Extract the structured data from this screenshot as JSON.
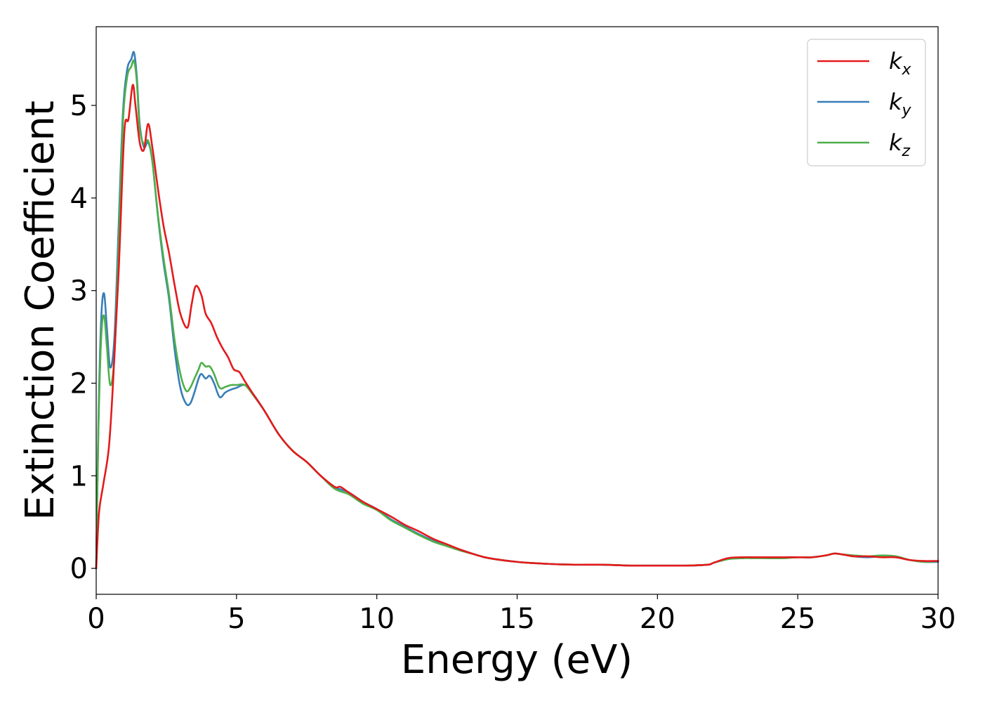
{
  "chart_data": {
    "type": "line",
    "xlabel": "Energy (eV)",
    "ylabel": "Extinction Coefficient",
    "xlim": [
      0,
      30
    ],
    "ylim": [
      -0.28,
      5.85
    ],
    "xticks": [
      "0",
      "5",
      "10",
      "15",
      "20",
      "25",
      "30"
    ],
    "yticks": [
      "0",
      "1",
      "2",
      "3",
      "4",
      "5"
    ],
    "grid": false,
    "legend_position": "top-right",
    "series": [
      {
        "name": "k_x",
        "label_main": "k",
        "label_sub": "x",
        "color": "#e41a1c",
        "x": [
          0,
          0.1,
          0.25,
          0.45,
          0.6,
          0.8,
          1.0,
          1.15,
          1.3,
          1.4,
          1.55,
          1.7,
          1.85,
          2.0,
          2.2,
          2.4,
          2.6,
          2.8,
          3.0,
          3.25,
          3.4,
          3.55,
          3.75,
          3.9,
          4.1,
          4.3,
          4.5,
          4.7,
          4.9,
          5.1,
          5.3,
          5.6,
          6.0,
          6.5,
          7.0,
          7.5,
          8.0,
          8.5,
          8.7,
          9.0,
          9.5,
          10.0,
          10.5,
          11.0,
          11.5,
          12.0,
          12.5,
          13.0,
          13.5,
          14.0,
          15.0,
          16.0,
          17.0,
          18.0,
          19.0,
          20.0,
          21.0,
          21.8,
          22.0,
          22.5,
          23.0,
          23.5,
          24.0,
          24.5,
          25.0,
          25.5,
          26.0,
          26.3,
          26.6,
          27.0,
          27.5,
          28.0,
          28.5,
          29.0,
          29.5,
          30.0
        ],
        "y": [
          0.0,
          0.6,
          0.9,
          1.3,
          2.0,
          3.2,
          4.7,
          4.85,
          5.22,
          5.0,
          4.6,
          4.52,
          4.8,
          4.55,
          4.1,
          3.7,
          3.4,
          3.05,
          2.75,
          2.6,
          2.85,
          3.05,
          2.95,
          2.75,
          2.65,
          2.5,
          2.38,
          2.28,
          2.15,
          2.12,
          2.02,
          1.88,
          1.7,
          1.45,
          1.27,
          1.15,
          1.0,
          0.88,
          0.88,
          0.82,
          0.72,
          0.64,
          0.56,
          0.47,
          0.4,
          0.32,
          0.26,
          0.2,
          0.15,
          0.11,
          0.07,
          0.05,
          0.04,
          0.04,
          0.03,
          0.03,
          0.03,
          0.04,
          0.06,
          0.11,
          0.12,
          0.12,
          0.12,
          0.12,
          0.12,
          0.12,
          0.14,
          0.16,
          0.15,
          0.13,
          0.13,
          0.12,
          0.12,
          0.09,
          0.08,
          0.08
        ]
      },
      {
        "name": "k_y",
        "label_main": "k",
        "label_sub": "y",
        "color": "#377eb8",
        "x": [
          0,
          0.08,
          0.18,
          0.28,
          0.38,
          0.5,
          0.65,
          0.8,
          0.95,
          1.1,
          1.25,
          1.35,
          1.45,
          1.55,
          1.7,
          1.85,
          2.0,
          2.2,
          2.4,
          2.6,
          2.8,
          3.0,
          3.2,
          3.35,
          3.5,
          3.65,
          3.75,
          3.9,
          4.05,
          4.2,
          4.4,
          4.6,
          4.8,
          5.0,
          5.3,
          5.6,
          6.0,
          6.5,
          7.0,
          7.5,
          8.0,
          8.5,
          9.0,
          9.5,
          10.0,
          10.5,
          11.0,
          11.5,
          12.0,
          12.5,
          13.0,
          13.5,
          14.0,
          15.0,
          16.0,
          17.0,
          18.0,
          19.0,
          20.0,
          21.0,
          21.8,
          22.0,
          22.5,
          23.0,
          23.5,
          24.0,
          24.5,
          25.0,
          25.5,
          26.0,
          26.3,
          26.6,
          27.0,
          27.5,
          28.0,
          28.5,
          29.0,
          29.5,
          30.0
        ],
        "y": [
          0.0,
          1.6,
          2.7,
          2.97,
          2.6,
          2.17,
          2.5,
          3.7,
          4.9,
          5.38,
          5.5,
          5.57,
          5.3,
          4.8,
          4.55,
          4.6,
          4.4,
          3.8,
          3.3,
          2.9,
          2.35,
          1.95,
          1.78,
          1.78,
          1.9,
          2.05,
          2.1,
          2.05,
          2.08,
          2.0,
          1.85,
          1.9,
          1.93,
          1.95,
          1.98,
          1.88,
          1.7,
          1.45,
          1.27,
          1.15,
          1.0,
          0.88,
          0.82,
          0.72,
          0.64,
          0.53,
          0.45,
          0.37,
          0.3,
          0.25,
          0.2,
          0.15,
          0.11,
          0.07,
          0.05,
          0.04,
          0.04,
          0.03,
          0.03,
          0.03,
          0.04,
          0.06,
          0.1,
          0.11,
          0.12,
          0.11,
          0.12,
          0.12,
          0.12,
          0.14,
          0.16,
          0.15,
          0.13,
          0.12,
          0.13,
          0.12,
          0.09,
          0.07,
          0.07
        ]
      },
      {
        "name": "k_z",
        "label_main": "k",
        "label_sub": "z",
        "color": "#4daf4a",
        "x": [
          0,
          0.08,
          0.18,
          0.28,
          0.38,
          0.5,
          0.65,
          0.8,
          0.95,
          1.1,
          1.25,
          1.35,
          1.45,
          1.55,
          1.7,
          1.85,
          2.0,
          2.2,
          2.4,
          2.6,
          2.8,
          3.0,
          3.2,
          3.35,
          3.5,
          3.65,
          3.75,
          3.9,
          4.05,
          4.2,
          4.4,
          4.6,
          4.8,
          5.0,
          5.3,
          5.6,
          6.0,
          6.5,
          7.0,
          7.5,
          8.0,
          8.5,
          9.0,
          9.5,
          10.0,
          10.5,
          11.0,
          11.5,
          12.0,
          12.5,
          13.0,
          13.5,
          14.0,
          15.0,
          16.0,
          17.0,
          18.0,
          19.0,
          20.0,
          21.0,
          21.8,
          22.0,
          22.5,
          23.0,
          23.5,
          24.0,
          24.5,
          25.0,
          25.5,
          26.0,
          26.3,
          26.6,
          27.0,
          27.5,
          28.0,
          28.5,
          29.0,
          29.5,
          30.0
        ],
        "y": [
          0.0,
          1.5,
          2.5,
          2.73,
          2.4,
          1.98,
          2.3,
          3.5,
          4.8,
          5.3,
          5.42,
          5.48,
          5.25,
          4.75,
          4.58,
          4.62,
          4.4,
          3.82,
          3.35,
          2.95,
          2.45,
          2.1,
          1.92,
          1.95,
          2.05,
          2.15,
          2.22,
          2.18,
          2.18,
          2.1,
          1.95,
          1.96,
          1.98,
          1.98,
          1.98,
          1.87,
          1.7,
          1.45,
          1.27,
          1.15,
          1.0,
          0.86,
          0.8,
          0.7,
          0.63,
          0.52,
          0.44,
          0.36,
          0.29,
          0.24,
          0.19,
          0.15,
          0.11,
          0.07,
          0.05,
          0.04,
          0.04,
          0.03,
          0.03,
          0.03,
          0.04,
          0.06,
          0.1,
          0.11,
          0.11,
          0.11,
          0.11,
          0.12,
          0.12,
          0.14,
          0.16,
          0.15,
          0.14,
          0.13,
          0.14,
          0.13,
          0.09,
          0.07,
          0.08
        ]
      }
    ]
  }
}
